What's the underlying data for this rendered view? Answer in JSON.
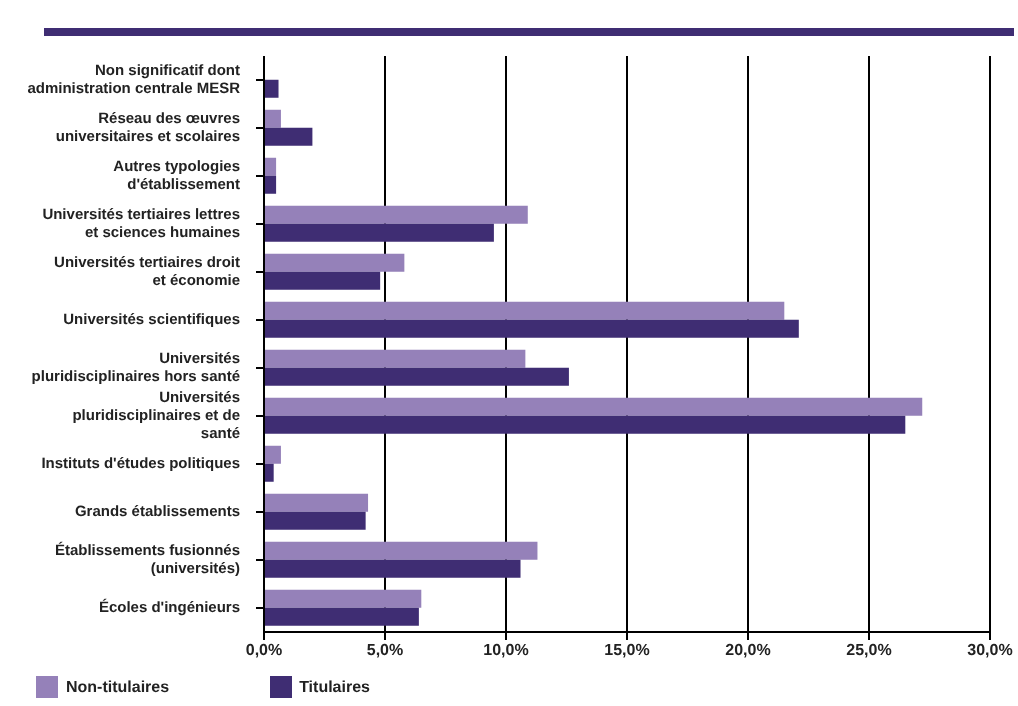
{
  "chart_data": {
    "type": "bar",
    "orientation": "horizontal",
    "categories": [
      "Non significatif dont administration centrale MESR",
      "Réseau des œuvres universitaires et scolaires",
      "Autres typologies d'établissement",
      "Universités tertiaires lettres et sciences humaines",
      "Universités tertiaires droit et économie",
      "Universités scientifiques",
      "Universités pluridisciplinaires hors santé",
      "Universités pluridisciplinaires et de santé",
      "Instituts d'études politiques",
      "Grands établissements",
      "Établissements fusionnés (universités)",
      "Écoles d'ingénieurs"
    ],
    "series": [
      {
        "name": "Non-titulaires",
        "color": "#9581b9",
        "values": [
          null,
          0.7,
          0.5,
          10.9,
          5.8,
          21.5,
          10.8,
          27.2,
          0.7,
          4.3,
          11.3,
          6.5
        ]
      },
      {
        "name": "Titulaires",
        "color": "#3f2d73",
        "values": [
          0.6,
          2.0,
          0.5,
          9.5,
          4.8,
          22.1,
          12.6,
          26.5,
          0.4,
          4.2,
          10.6,
          6.4
        ]
      }
    ],
    "xlim": [
      0,
      30
    ],
    "xticks": [
      {
        "value": 0,
        "label": "0,0%"
      },
      {
        "value": 5,
        "label": "5,0%"
      },
      {
        "value": 10,
        "label": "10,0%"
      },
      {
        "value": 15,
        "label": "15,0%"
      },
      {
        "value": 20,
        "label": "20,0%"
      },
      {
        "value": 25,
        "label": "25,0%"
      },
      {
        "value": 30,
        "label": "30,0%"
      }
    ],
    "grid": "x",
    "legend": "bottom left"
  }
}
